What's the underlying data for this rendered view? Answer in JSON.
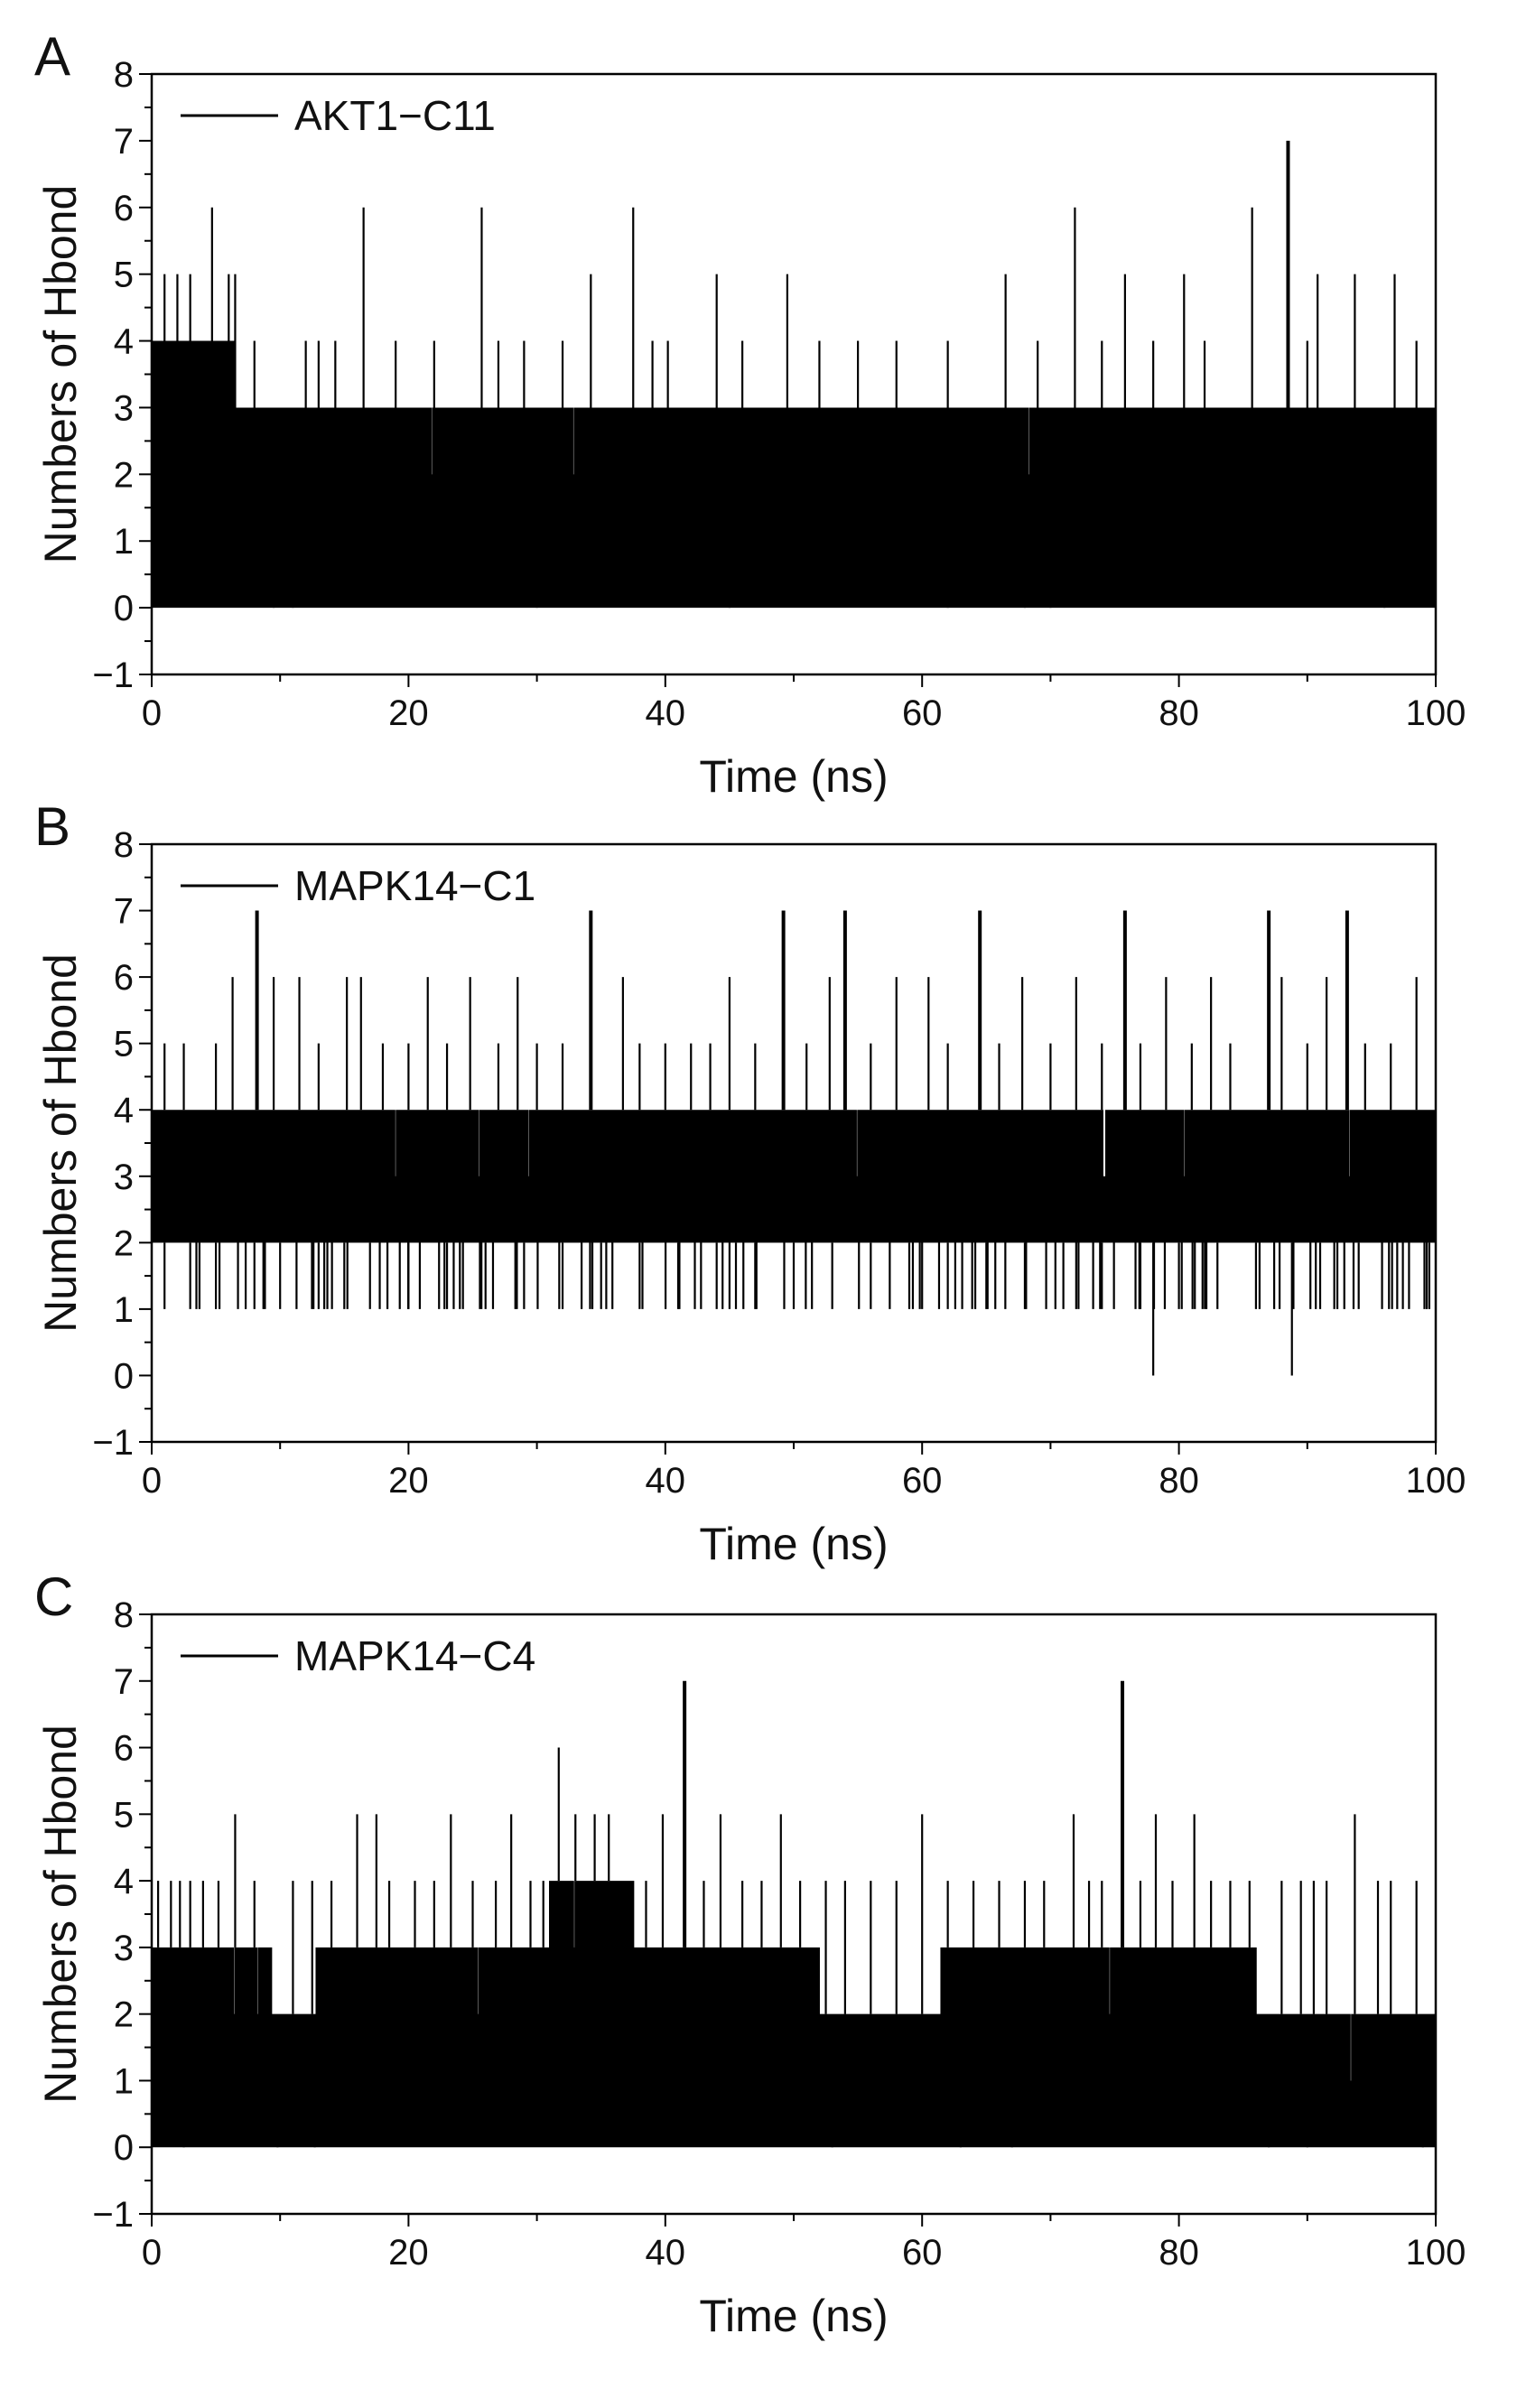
{
  "figure": {
    "colors": {
      "trace": "#000000",
      "axis": "#000000",
      "background": "#ffffff"
    }
  },
  "chart_data": [
    {
      "type": "line",
      "panel_label": "A",
      "legend": "AKT1−C11",
      "xlabel": "Time (ns)",
      "ylabel": "Numbers of Hbond",
      "xlim": [
        0,
        100
      ],
      "ylim": [
        -1,
        8
      ],
      "xticks": [
        "0",
        "20",
        "40",
        "60",
        "80",
        "100"
      ],
      "yticks": [
        "−1",
        "0",
        "1",
        "2",
        "3",
        "4",
        "5",
        "6",
        "7",
        "8"
      ],
      "band": [
        [
          0,
          0,
          4
        ],
        [
          6.5,
          0,
          3
        ],
        [
          100,
          0,
          3
        ]
      ],
      "dips": [
        [
          68,
          1
        ],
        [
          9.5,
          2
        ],
        [
          11,
          2
        ],
        [
          30,
          2
        ],
        [
          45,
          2
        ],
        [
          62,
          2
        ],
        [
          70,
          2
        ],
        [
          96,
          2
        ]
      ],
      "spikes": [
        [
          1,
          5
        ],
        [
          2,
          5
        ],
        [
          3,
          5
        ],
        [
          4.7,
          6
        ],
        [
          6,
          5
        ],
        [
          6.5,
          5
        ],
        [
          8,
          4
        ],
        [
          12,
          4
        ],
        [
          13,
          4
        ],
        [
          14.3,
          4
        ],
        [
          16.5,
          6
        ],
        [
          19,
          4
        ],
        [
          22,
          4
        ],
        [
          25.7,
          6
        ],
        [
          27,
          4
        ],
        [
          29,
          4
        ],
        [
          32,
          4
        ],
        [
          34.2,
          5
        ],
        [
          37.5,
          6
        ],
        [
          39,
          4
        ],
        [
          40.2,
          4
        ],
        [
          44,
          5
        ],
        [
          46,
          4
        ],
        [
          49.5,
          5
        ],
        [
          52,
          4
        ],
        [
          55,
          4
        ],
        [
          58,
          4
        ],
        [
          62,
          4
        ],
        [
          66.5,
          5
        ],
        [
          69,
          4
        ],
        [
          71.9,
          6
        ],
        [
          74,
          4
        ],
        [
          75.8,
          5
        ],
        [
          78,
          4
        ],
        [
          80.4,
          5
        ],
        [
          82,
          4
        ],
        [
          85.7,
          6
        ],
        [
          88.5,
          7
        ],
        [
          90,
          4
        ],
        [
          90.8,
          5
        ],
        [
          93.7,
          5
        ],
        [
          96.8,
          5
        ],
        [
          98.5,
          4
        ]
      ]
    },
    {
      "type": "line",
      "panel_label": "B",
      "legend": "MAPK14−C1",
      "xlabel": "Time (ns)",
      "ylabel": "Numbers of Hbond",
      "xlim": [
        0,
        100
      ],
      "ylim": [
        -1,
        8
      ],
      "xticks": [
        "0",
        "20",
        "40",
        "60",
        "80",
        "100"
      ],
      "yticks": [
        "−1",
        "0",
        "1",
        "2",
        "3",
        "4",
        "5",
        "6",
        "7",
        "8"
      ],
      "band": [
        [
          0,
          2,
          4
        ],
        [
          100,
          2,
          4
        ]
      ],
      "dips": [
        [
          1,
          1
        ],
        [
          3,
          1
        ],
        [
          5,
          1
        ],
        [
          8,
          1
        ],
        [
          10,
          1
        ],
        [
          13,
          1
        ],
        [
          15,
          1
        ],
        [
          17,
          1
        ],
        [
          20,
          1
        ],
        [
          23,
          1
        ],
        [
          26,
          1
        ],
        [
          29,
          1
        ],
        [
          32,
          1
        ],
        [
          35,
          1
        ],
        [
          38,
          1
        ],
        [
          41,
          1
        ],
        [
          44,
          1
        ],
        [
          45.5,
          1
        ],
        [
          47,
          1
        ],
        [
          50,
          1
        ],
        [
          53,
          1
        ],
        [
          56,
          1
        ],
        [
          59,
          1
        ],
        [
          62,
          1
        ],
        [
          65,
          1
        ],
        [
          68,
          1
        ],
        [
          71,
          1
        ],
        [
          74,
          1
        ],
        [
          77,
          1
        ],
        [
          78,
          0
        ],
        [
          80,
          1
        ],
        [
          83,
          1
        ],
        [
          86,
          1
        ],
        [
          88.8,
          0
        ],
        [
          91,
          1
        ],
        [
          94,
          1
        ],
        [
          97,
          1
        ],
        [
          99.5,
          1
        ]
      ],
      "spikes": [
        [
          1,
          5
        ],
        [
          2.5,
          5
        ],
        [
          5,
          5
        ],
        [
          6.3,
          6
        ],
        [
          8.2,
          7
        ],
        [
          9.5,
          6
        ],
        [
          11.5,
          6
        ],
        [
          13,
          5
        ],
        [
          15.2,
          6
        ],
        [
          16.3,
          6
        ],
        [
          18,
          5
        ],
        [
          20,
          5
        ],
        [
          21.5,
          6
        ],
        [
          23,
          5
        ],
        [
          24.8,
          6
        ],
        [
          27,
          5
        ],
        [
          28.5,
          6
        ],
        [
          30,
          5
        ],
        [
          32,
          5
        ],
        [
          34.2,
          7
        ],
        [
          36.7,
          6
        ],
        [
          38,
          5
        ],
        [
          40,
          5
        ],
        [
          42,
          5
        ],
        [
          43.5,
          5
        ],
        [
          45,
          6
        ],
        [
          47,
          5
        ],
        [
          49.2,
          7
        ],
        [
          51,
          5
        ],
        [
          52.8,
          6
        ],
        [
          54,
          7
        ],
        [
          56,
          5
        ],
        [
          58,
          6
        ],
        [
          60.5,
          6
        ],
        [
          62,
          5
        ],
        [
          64.5,
          7
        ],
        [
          66,
          5
        ],
        [
          67.8,
          6
        ],
        [
          70,
          5
        ],
        [
          72,
          6
        ],
        [
          74,
          5
        ],
        [
          75.8,
          7
        ],
        [
          77,
          5
        ],
        [
          79,
          6
        ],
        [
          81,
          5
        ],
        [
          82.5,
          6
        ],
        [
          84,
          5
        ],
        [
          87,
          7
        ],
        [
          88,
          6
        ],
        [
          90,
          5
        ],
        [
          91.5,
          6
        ],
        [
          93.1,
          7
        ],
        [
          94.5,
          5
        ],
        [
          96.5,
          5
        ],
        [
          98.5,
          6
        ]
      ]
    },
    {
      "type": "line",
      "panel_label": "C",
      "legend": "MAPK14−C4",
      "xlabel": "Time (ns)",
      "ylabel": "Numbers of Hbond",
      "xlim": [
        0,
        100
      ],
      "ylim": [
        -1,
        8
      ],
      "xticks": [
        "0",
        "20",
        "40",
        "60",
        "80",
        "100"
      ],
      "yticks": [
        "−1",
        "0",
        "1",
        "2",
        "3",
        "4",
        "5",
        "6",
        "7",
        "8"
      ],
      "band": [
        [
          0,
          0,
          3
        ],
        [
          9.3,
          0,
          2
        ],
        [
          12,
          0,
          2
        ],
        [
          12.8,
          0,
          3
        ],
        [
          31,
          0,
          4
        ],
        [
          37.5,
          0,
          3
        ],
        [
          44,
          0,
          3
        ],
        [
          52,
          0,
          2
        ],
        [
          61.5,
          0,
          3
        ],
        [
          70,
          0,
          3
        ],
        [
          80,
          0,
          3
        ],
        [
          86,
          0,
          2
        ],
        [
          100,
          0,
          2
        ]
      ],
      "dips": [
        [
          2.5,
          2
        ],
        [
          9.8,
          1
        ],
        [
          12.7,
          1
        ],
        [
          53,
          1
        ],
        [
          63,
          2
        ],
        [
          67,
          2
        ],
        [
          87,
          1
        ],
        [
          90,
          1
        ],
        [
          99,
          1
        ]
      ],
      "spikes": [
        [
          0.5,
          4
        ],
        [
          1.5,
          4
        ],
        [
          2.2,
          4
        ],
        [
          3,
          4
        ],
        [
          4,
          4
        ],
        [
          5.2,
          4
        ],
        [
          6.5,
          5
        ],
        [
          8,
          4
        ],
        [
          11,
          4
        ],
        [
          12.5,
          4
        ],
        [
          14,
          4
        ],
        [
          16,
          5
        ],
        [
          17.5,
          5
        ],
        [
          18.5,
          4
        ],
        [
          20.5,
          4
        ],
        [
          22,
          4
        ],
        [
          23.3,
          5
        ],
        [
          25,
          4
        ],
        [
          26.8,
          4
        ],
        [
          28,
          5
        ],
        [
          29.5,
          4
        ],
        [
          30.5,
          4
        ],
        [
          31.7,
          6
        ],
        [
          33,
          5
        ],
        [
          34.5,
          5
        ],
        [
          35.6,
          5
        ],
        [
          37,
          4
        ],
        [
          38.5,
          4
        ],
        [
          39.8,
          5
        ],
        [
          41.5,
          7
        ],
        [
          43,
          4
        ],
        [
          44.3,
          5
        ],
        [
          46,
          4
        ],
        [
          47.5,
          4
        ],
        [
          49,
          5
        ],
        [
          50.5,
          4
        ],
        [
          52.5,
          4
        ],
        [
          54,
          4
        ],
        [
          56,
          4
        ],
        [
          58,
          4
        ],
        [
          60,
          5
        ],
        [
          62,
          4
        ],
        [
          64,
          4
        ],
        [
          66,
          4
        ],
        [
          68,
          4
        ],
        [
          69.5,
          4
        ],
        [
          71.8,
          5
        ],
        [
          73,
          4
        ],
        [
          74,
          4
        ],
        [
          75.6,
          7
        ],
        [
          77,
          4
        ],
        [
          78.2,
          5
        ],
        [
          79.5,
          4
        ],
        [
          81.2,
          5
        ],
        [
          82.5,
          4
        ],
        [
          84,
          4
        ],
        [
          85.5,
          4
        ],
        [
          88,
          4
        ],
        [
          89.5,
          4
        ],
        [
          90.5,
          4
        ],
        [
          91.5,
          4
        ],
        [
          93.7,
          5
        ],
        [
          95.5,
          4
        ],
        [
          96.5,
          4
        ],
        [
          98.5,
          4
        ]
      ]
    }
  ]
}
